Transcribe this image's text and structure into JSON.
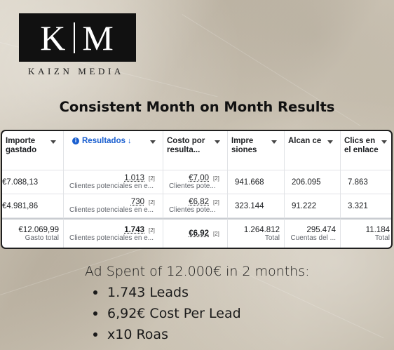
{
  "brand": {
    "logo_left": "K",
    "logo_right": "M",
    "name": "KAIZN MEDIA"
  },
  "headline": "Consistent Month on Month Results",
  "table": {
    "headers": {
      "importe": "Importe gastado",
      "resultados": "Resultados",
      "costo": "Costo por resulta...",
      "impresiones": "Impre siones",
      "alcance": "Alcan ce",
      "clics": "Clics en el enlace"
    },
    "rows": [
      {
        "importe": "€7.088,13",
        "resultados": "1.013",
        "resultados_ref": "[2]",
        "resultados_sub": "Clientes potenciales en e...",
        "costo": "€7,00",
        "costo_ref": "[2]",
        "costo_sub": "Clientes pote...",
        "impresiones": "941.668",
        "alcance": "206.095",
        "clics": "7.863"
      },
      {
        "importe": "€4.981,86",
        "resultados": "730",
        "resultados_ref": "[2]",
        "resultados_sub": "Clientes potenciales en e...",
        "costo": "€6,82",
        "costo_ref": "[2]",
        "costo_sub": "Clientes pote...",
        "impresiones": "323.144",
        "alcance": "91.222",
        "clics": "3.321"
      }
    ],
    "totals": {
      "importe": "€12.069,99",
      "importe_sub": "Gasto total",
      "resultados": "1.743",
      "resultados_ref": "[2]",
      "resultados_sub": "Clientes potenciales en e...",
      "costo": "€6,92",
      "costo_ref": "[2]",
      "costo_sub": "",
      "impresiones": "1.264.812",
      "impresiones_sub": "Total",
      "alcance": "295.474",
      "alcance_sub": "Cuentas del ...",
      "clics": "11.184",
      "clics_sub": "Total"
    }
  },
  "summary": {
    "lead": "Ad Spent of 12.000€ in 2 months:",
    "bullets": [
      "1.743 Leads",
      "6,92€ Cost Per Lead",
      "x10 Roas"
    ]
  },
  "colors": {
    "accent_blue": "#1a5fd0",
    "logo_bg": "#111111"
  }
}
